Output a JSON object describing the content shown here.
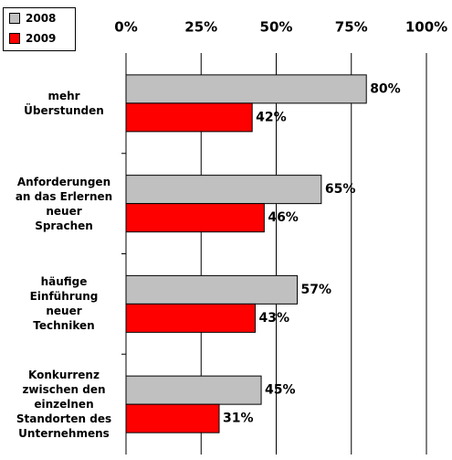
{
  "chart_data": {
    "type": "bar",
    "orientation": "horizontal",
    "categories": [
      "mehr\nÜberstunden",
      "Anforderungen\nan das Erlernen\nneuer\nSprachen",
      "häufige\nEinführung\nneuer\nTechniken",
      "Konkurrenz\nzwischen den\neinzelnen\nStandorten des\nUnternehmens"
    ],
    "series": [
      {
        "name": "2008",
        "color": "#c0c0c0",
        "values": [
          80,
          65,
          57,
          45
        ],
        "value_labels": [
          "80%",
          "65%",
          "57%",
          "45%"
        ]
      },
      {
        "name": "2009",
        "color": "#ff0000",
        "values": [
          42,
          46,
          43,
          31
        ],
        "value_labels": [
          "42%",
          "46%",
          "43%",
          "31%"
        ]
      }
    ],
    "xlim": [
      0,
      100
    ],
    "xticks": [
      {
        "value": 0,
        "label": "0%"
      },
      {
        "value": 25,
        "label": "25%"
      },
      {
        "value": 50,
        "label": "50%"
      },
      {
        "value": 75,
        "label": "75%"
      },
      {
        "value": 100,
        "label": "100%"
      }
    ],
    "grid": true,
    "legend": "top-left"
  }
}
